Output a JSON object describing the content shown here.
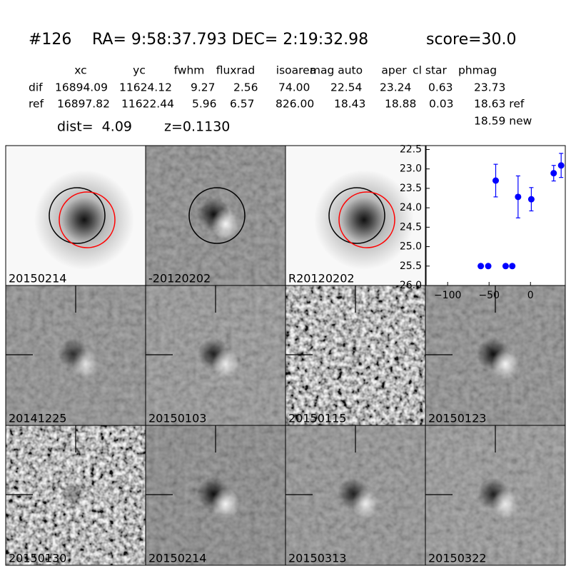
{
  "header": {
    "id": "#126",
    "coords": "RA= 9:58:37.793 DEC= 2:19:32.98",
    "score": "score=30.0"
  },
  "table": {
    "columns": [
      "xc",
      "yc",
      "fwhm",
      "fluxrad",
      "isoarea",
      "mag auto",
      "aper",
      "cl star",
      "phmag"
    ],
    "rows": [
      [
        "dif",
        "16894.09",
        "11624.12",
        "9.27",
        "2.56",
        "74.00",
        "22.54",
        "23.24",
        "0.63",
        "23.73"
      ],
      [
        "ref",
        "16897.82",
        "11622.44",
        "5.96",
        "6.57",
        "826.00",
        "18.43",
        "18.88",
        "0.03",
        "18.63 ref"
      ]
    ],
    "note": "18.59 new"
  },
  "dist": "dist=  4.09",
  "redshift": "z=0.1130",
  "panels": [
    {
      "label": "20150214"
    },
    {
      "label": "-20120202"
    },
    {
      "label": "R20120202"
    },
    {
      "label": "20141225"
    },
    {
      "label": "20150103"
    },
    {
      "label": "20150115"
    },
    {
      "label": "20150123"
    },
    {
      "label": "20150130"
    },
    {
      "label": "20150214",
      "label_color": "#ff0000"
    },
    {
      "label": "20150313"
    },
    {
      "label": "20150322"
    }
  ],
  "chart_data": {
    "type": "errorbar",
    "x": [
      -60,
      -51,
      -42,
      -30,
      -22,
      -15,
      1,
      28,
      37
    ],
    "series": [
      {
        "color": "#0000ff",
        "values": [
          25.5,
          25.5,
          23.3,
          25.5,
          25.5,
          23.72,
          23.78,
          23.11,
          22.91
        ],
        "errors": [
          0.05,
          0.05,
          0.42,
          0.05,
          0.05,
          0.54,
          0.3,
          0.2,
          0.31
        ]
      }
    ],
    "xlim": [
      -126,
      42
    ],
    "xticks": [
      {
        "value": -100,
        "label": "−100"
      },
      {
        "value": -50,
        "label": "−50"
      },
      0
    ],
    "ylim": [
      26.0,
      22.4
    ],
    "yticks": [
      22.5,
      {
        "value": 23,
        "label": "23.0"
      },
      23.5,
      {
        "value": 24,
        "label": "24.0"
      },
      24.5,
      {
        "value": 25,
        "label": "25.0"
      },
      25.5,
      {
        "value": 26,
        "label": "26.0"
      }
    ]
  }
}
